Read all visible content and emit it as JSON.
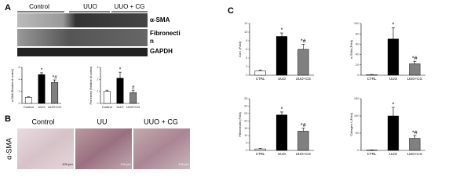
{
  "panel_labels": [
    "A",
    "B",
    "C"
  ],
  "blot": {
    "groups": [
      "Control",
      "UUO",
      "UUO + CG"
    ],
    "proteins": [
      "α-SMA",
      "Fibronecti",
      "n",
      "GAPDH"
    ]
  },
  "histology": {
    "groups": [
      "Control",
      "UU",
      "UUO + CG"
    ],
    "stain": "α-SMA",
    "scale_bars": [
      "100 µm",
      "100 µm",
      "100 µm"
    ]
  },
  "chart_data": [
    {
      "type": "bar",
      "ylabel": "α-SMA (Relative of control)",
      "categories": [
        "Control",
        "UUO",
        "UUO+CG"
      ],
      "values": [
        1,
        4.8,
        3.5
      ],
      "errors": [
        0.1,
        0.3,
        0.4
      ],
      "annotations": [
        null,
        "*",
        "*#"
      ],
      "colors": [
        "#ffffff",
        "#000000",
        "#808080"
      ],
      "ylim": [
        0,
        6
      ],
      "yticks": [
        0,
        2,
        4,
        6
      ]
    },
    {
      "type": "bar",
      "ylabel": "Fibronectin (Relative of control)",
      "categories": [
        "Control",
        "UUO",
        "UUO+CG"
      ],
      "values": [
        1,
        2.1,
        0.9
      ],
      "errors": [
        0.1,
        0.5,
        0.2
      ],
      "annotations": [
        null,
        "*",
        "#"
      ],
      "colors": [
        "#ffffff",
        "#000000",
        "#808080"
      ],
      "ylim": [
        0,
        3
      ],
      "yticks": [
        0,
        1,
        2,
        3
      ]
    },
    {
      "type": "bar",
      "ylabel": "Col I (Fold)",
      "categories": [
        "CTRL",
        "UUO",
        "UUO+CG"
      ],
      "values": [
        1,
        9,
        6
      ],
      "errors": [
        0.2,
        0.8,
        1.2
      ],
      "annotations": [
        null,
        "*",
        "*#"
      ],
      "colors": [
        "#ffffff",
        "#000000",
        "#808080"
      ],
      "ylim": [
        0,
        12
      ],
      "yticks": [
        0,
        2,
        4,
        6,
        8,
        10,
        12
      ]
    },
    {
      "type": "bar",
      "ylabel": "α-SMA (Fold)",
      "categories": [
        "CTRL",
        "UUO",
        "UUO+CG"
      ],
      "values": [
        1,
        70,
        22
      ],
      "errors": [
        0.5,
        22,
        5
      ],
      "annotations": [
        null,
        "*",
        "*#"
      ],
      "colors": [
        "#ffffff",
        "#000000",
        "#808080"
      ],
      "ylim": [
        0,
        100
      ],
      "yticks": [
        0,
        20,
        40,
        60,
        80,
        100
      ]
    },
    {
      "type": "bar",
      "ylabel": "Fibronectin (Fold)",
      "categories": [
        "CTRL",
        "UUO",
        "UUO+CG"
      ],
      "values": [
        1,
        24,
        13
      ],
      "errors": [
        0.3,
        2,
        2
      ],
      "annotations": [
        null,
        "*",
        "*#"
      ],
      "colors": [
        "#ffffff",
        "#000000",
        "#808080"
      ],
      "ylim": [
        0,
        35
      ],
      "yticks": [
        0,
        5,
        10,
        15,
        20,
        25,
        30,
        35
      ]
    },
    {
      "type": "bar",
      "ylabel": "Collagen I (Fold)",
      "categories": [
        "CTRL",
        "UUO",
        "UUO+CG"
      ],
      "values": [
        1,
        100,
        35
      ],
      "errors": [
        0.5,
        25,
        8
      ],
      "annotations": [
        null,
        "*",
        "*#"
      ],
      "colors": [
        "#ffffff",
        "#000000",
        "#808080"
      ],
      "ylim": [
        0,
        150
      ],
      "yticks": [
        0,
        50,
        100,
        150
      ]
    }
  ]
}
